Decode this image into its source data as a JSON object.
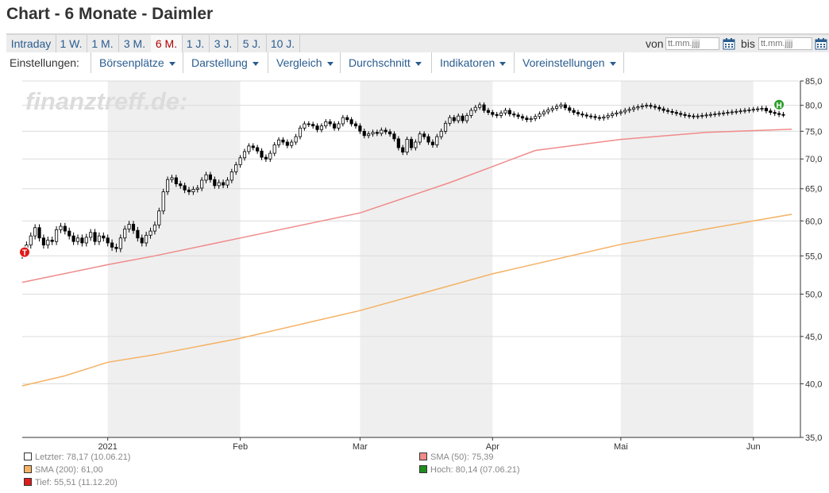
{
  "title": "Chart - 6 Monate - Daimler",
  "ranges": [
    "Intraday",
    "1 W.",
    "1 M.",
    "3 M.",
    "6 M.",
    "1 J.",
    "3 J.",
    "5 J.",
    "10 J."
  ],
  "active_range": "6 M.",
  "date_filter": {
    "from_label": "von",
    "from_placeholder": "tt.mm.jjjj",
    "to_label": "bis",
    "to_placeholder": "tt.mm.jjjj"
  },
  "settings": {
    "label": "Einstellungen:",
    "menus": [
      "Börsenplätze",
      "Darstellung",
      "Vergleich",
      "Durchschnitt",
      "Indikatoren",
      "Voreinstellungen"
    ]
  },
  "watermark": "finanztreff.de:",
  "colors": {
    "sma50": "#f08a8a",
    "sma200": "#f5b264",
    "shade": "#efefef",
    "high_marker": "#2e9e2e",
    "low_marker": "#e01b1b"
  },
  "chart_data": {
    "type": "line",
    "scale": "log",
    "ylim": [
      35,
      85
    ],
    "y_ticks": [
      "85,0",
      "80,0",
      "75,0",
      "70,0",
      "65,0",
      "60,0",
      "55,0",
      "50,0",
      "45,0",
      "40,0",
      "35,0"
    ],
    "y_tick_values": [
      85,
      80,
      75,
      70,
      65,
      60,
      55,
      50,
      45,
      40,
      35
    ],
    "x_labels": [
      "2021",
      "Feb",
      "Mar",
      "Apr",
      "Mai",
      "Jun"
    ],
    "x_label_days": [
      20,
      51,
      79,
      110,
      140,
      171
    ],
    "x_range_days": [
      0,
      182
    ],
    "shaded_months": [
      [
        20,
        51
      ],
      [
        79,
        110
      ],
      [
        140,
        171
      ]
    ],
    "ohlc_days": [
      0,
      1,
      2,
      3,
      4,
      5,
      6,
      7,
      8,
      9,
      10,
      11,
      12,
      13,
      14,
      15,
      16,
      17,
      18,
      19,
      20,
      21,
      22,
      23,
      24,
      25,
      26,
      27,
      28,
      29,
      30,
      31,
      32,
      33,
      34,
      35,
      36,
      37,
      38,
      39,
      40,
      41,
      42,
      43,
      44,
      45,
      46,
      47,
      48,
      49,
      50,
      51,
      52,
      53,
      54,
      55,
      56,
      57,
      58,
      59,
      60,
      61,
      62,
      63,
      64,
      65,
      66,
      67,
      68,
      69,
      70,
      71,
      72,
      73,
      74,
      75,
      76,
      77,
      78,
      79,
      80,
      81,
      82,
      83,
      84,
      85,
      86,
      87,
      88,
      89,
      90,
      91,
      92,
      93,
      94,
      95,
      96,
      97,
      98,
      99,
      100,
      101,
      102,
      103,
      104,
      105,
      106,
      107,
      108,
      109,
      110,
      111,
      112,
      113,
      114,
      115,
      116,
      117,
      118,
      119,
      120,
      121,
      122,
      123,
      124,
      125,
      126,
      127,
      128,
      129,
      130,
      131,
      132,
      133,
      134,
      135,
      136,
      137,
      138,
      139,
      140,
      141,
      142,
      143,
      144,
      145,
      146,
      147,
      148,
      149,
      150,
      151,
      152,
      153,
      154,
      155,
      156,
      157,
      158,
      159,
      160,
      161,
      162,
      163,
      164,
      165,
      166,
      167,
      168,
      169,
      170,
      171,
      172,
      173,
      174,
      175,
      176,
      177,
      178,
      179,
      180
    ],
    "close": [
      55.5,
      56.5,
      57.8,
      59.0,
      57.5,
      56.5,
      57.2,
      57.0,
      58.7,
      59.2,
      58.5,
      57.8,
      57.0,
      57.5,
      56.8,
      57.6,
      58.3,
      57.0,
      57.8,
      57.5,
      56.8,
      56.2,
      56.0,
      57.5,
      58.8,
      59.5,
      58.6,
      57.5,
      56.8,
      57.9,
      58.5,
      59.4,
      61.5,
      64.5,
      66.5,
      66.8,
      65.8,
      65.5,
      64.8,
      64.5,
      64.9,
      65.1,
      66.4,
      67.3,
      66.5,
      65.5,
      66.0,
      65.6,
      66.4,
      67.8,
      69.0,
      70.2,
      71.3,
      72.3,
      72.0,
      71.4,
      70.3,
      70.0,
      71.0,
      72.5,
      73.4,
      73.0,
      72.4,
      73.0,
      74.0,
      75.6,
      76.4,
      76.3,
      76.0,
      75.3,
      76.0,
      76.8,
      76.4,
      75.6,
      76.4,
      77.6,
      77.2,
      76.4,
      76.0,
      75.0,
      74.2,
      74.5,
      74.8,
      74.6,
      75.2,
      74.9,
      74.5,
      73.6,
      72.0,
      71.2,
      73.5,
      72.0,
      73.0,
      74.5,
      74.0,
      73.0,
      72.5,
      74.0,
      75.0,
      76.5,
      77.6,
      77.0,
      77.9,
      77.0,
      78.0,
      79.0,
      79.6,
      80.1,
      79.0,
      78.6,
      78.2,
      78.0,
      78.5,
      79.0,
      78.3,
      78.1,
      77.8,
      77.5,
      77.2,
      77.4,
      77.8,
      78.3,
      78.7,
      79.1,
      79.4,
      79.8,
      80.1,
      79.5,
      79.0,
      78.6,
      78.3,
      78.1,
      77.9,
      77.8,
      77.6,
      77.5,
      77.7,
      78.0,
      78.3,
      78.5,
      78.7,
      79.0,
      79.2,
      79.5,
      79.7,
      79.9,
      80.0,
      79.8,
      79.6,
      79.3,
      79.0,
      78.8,
      78.6,
      78.4,
      78.2,
      78.0,
      77.9,
      77.8,
      77.9,
      78.0,
      78.1,
      78.2,
      78.3,
      78.4,
      78.5,
      78.6,
      78.7,
      78.8,
      78.9,
      79.0,
      79.1,
      79.2,
      79.3,
      79.4,
      78.9,
      78.6,
      78.4,
      78.2,
      78.17
    ],
    "sma50": {
      "x": [
        0,
        20,
        31,
        51,
        79,
        100,
        120,
        140,
        160,
        180
      ],
      "y": [
        51.5,
        53.8,
        55.0,
        57.5,
        61.2,
        66.0,
        71.5,
        73.5,
        74.8,
        75.39
      ]
    },
    "sma200": {
      "x": [
        0,
        10,
        20,
        31,
        51,
        79,
        110,
        140,
        160,
        180
      ],
      "y": [
        39.8,
        40.8,
        42.2,
        43.0,
        44.8,
        48.0,
        52.6,
        56.6,
        58.8,
        61.0
      ]
    },
    "markers": [
      {
        "label": "T",
        "day": 0,
        "value": 55.51
      },
      {
        "label": "H",
        "day": 177,
        "value": 80.14
      }
    ],
    "legend": [
      {
        "text": "Letzter: 78,17 (10.06.21)",
        "color": "#ffffff"
      },
      {
        "text": "SMA (50): 75,39",
        "color": "#f08a8a"
      },
      {
        "text": "SMA (200): 61,00",
        "color": "#f5b264"
      },
      {
        "text": "Hoch: 80,14 (07.06.21)",
        "color": "#1e8e1e"
      },
      {
        "text": "Tief: 55,51 (11.12.20)",
        "color": "#e01b1b"
      }
    ]
  }
}
